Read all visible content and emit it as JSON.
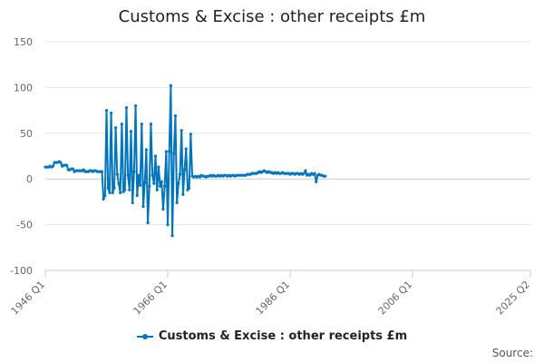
{
  "chart_data": {
    "type": "line",
    "title": "Customs & Excise : other receipts £m",
    "xlabel": "",
    "ylabel": "",
    "ylim": [
      -100,
      150
    ],
    "y_ticks": [
      150,
      100,
      50,
      0,
      -50,
      -100
    ],
    "x_range": [
      1946.0,
      2025.25
    ],
    "x_ticks": [
      {
        "label": "1946 Q1",
        "value": 1946.0
      },
      {
        "label": "1966 Q1",
        "value": 1966.0
      },
      {
        "label": "1986 Q1",
        "value": 1986.0
      },
      {
        "label": "2006 Q1",
        "value": 2006.0
      },
      {
        "label": "2025 Q2",
        "value": 2025.25
      }
    ],
    "grid": true,
    "legend_position": "bottom",
    "series_color": "#0075bc",
    "series": [
      {
        "name": "Customs & Excise : other receipts £m",
        "points": [
          [
            1946.0,
            13
          ],
          [
            1946.25,
            13
          ],
          [
            1946.5,
            13
          ],
          [
            1946.75,
            14
          ],
          [
            1947.0,
            13
          ],
          [
            1947.25,
            14
          ],
          [
            1947.5,
            18
          ],
          [
            1947.75,
            18
          ],
          [
            1948.0,
            18
          ],
          [
            1948.25,
            19
          ],
          [
            1948.5,
            18
          ],
          [
            1948.75,
            14
          ],
          [
            1949.0,
            15
          ],
          [
            1949.25,
            15
          ],
          [
            1949.5,
            15
          ],
          [
            1949.75,
            10
          ],
          [
            1950.0,
            10
          ],
          [
            1950.25,
            11
          ],
          [
            1950.5,
            11
          ],
          [
            1950.75,
            8
          ],
          [
            1951.0,
            9
          ],
          [
            1951.25,
            9
          ],
          [
            1951.5,
            9
          ],
          [
            1951.75,
            9
          ],
          [
            1952.0,
            9
          ],
          [
            1952.25,
            10
          ],
          [
            1952.5,
            8
          ],
          [
            1952.75,
            8
          ],
          [
            1953.0,
            8
          ],
          [
            1953.25,
            9
          ],
          [
            1953.5,
            9
          ],
          [
            1953.75,
            8
          ],
          [
            1954.0,
            9
          ],
          [
            1954.25,
            9
          ],
          [
            1954.5,
            8
          ],
          [
            1954.75,
            8
          ],
          [
            1955.0,
            8
          ],
          [
            1955.25,
            8
          ],
          [
            1955.5,
            -22
          ],
          [
            1955.75,
            -18
          ],
          [
            1956.0,
            75
          ],
          [
            1956.25,
            -10
          ],
          [
            1956.5,
            -15
          ],
          [
            1956.75,
            72
          ],
          [
            1957.0,
            -15
          ],
          [
            1957.25,
            -10
          ],
          [
            1957.5,
            56
          ],
          [
            1957.75,
            5
          ],
          [
            1958.0,
            -5
          ],
          [
            1958.25,
            -15
          ],
          [
            1958.5,
            60
          ],
          [
            1958.75,
            -14
          ],
          [
            1959.0,
            -12
          ],
          [
            1959.25,
            78
          ],
          [
            1959.5,
            4
          ],
          [
            1959.75,
            -12
          ],
          [
            1960.0,
            52
          ],
          [
            1960.25,
            -26
          ],
          [
            1960.5,
            8
          ],
          [
            1960.75,
            80
          ],
          [
            1961.0,
            -18
          ],
          [
            1961.25,
            4
          ],
          [
            1961.5,
            -7
          ],
          [
            1961.75,
            60
          ],
          [
            1962.0,
            -30
          ],
          [
            1962.25,
            -4
          ],
          [
            1962.5,
            32
          ],
          [
            1962.75,
            -48
          ],
          [
            1963.0,
            -8
          ],
          [
            1963.25,
            60
          ],
          [
            1963.5,
            4
          ],
          [
            1963.75,
            -5
          ],
          [
            1964.0,
            25
          ],
          [
            1964.25,
            -12
          ],
          [
            1964.5,
            13
          ],
          [
            1964.75,
            -8
          ],
          [
            1965.0,
            -3
          ],
          [
            1965.25,
            -33
          ],
          [
            1965.5,
            -8
          ],
          [
            1965.75,
            30
          ],
          [
            1966.0,
            -50
          ],
          [
            1966.25,
            30
          ],
          [
            1966.5,
            102
          ],
          [
            1966.75,
            -62
          ],
          [
            1967.0,
            28
          ],
          [
            1967.25,
            69
          ],
          [
            1967.5,
            -26
          ],
          [
            1967.75,
            -5
          ],
          [
            1968.0,
            5
          ],
          [
            1968.25,
            53
          ],
          [
            1968.5,
            -17
          ],
          [
            1968.75,
            10
          ],
          [
            1969.0,
            33
          ],
          [
            1969.25,
            -12
          ],
          [
            1969.5,
            -10
          ],
          [
            1969.75,
            49
          ],
          [
            1970.0,
            3
          ],
          [
            1970.25,
            2
          ],
          [
            1970.5,
            3
          ],
          [
            1970.75,
            2
          ],
          [
            1971.0,
            3
          ],
          [
            1971.25,
            2
          ],
          [
            1971.5,
            4
          ],
          [
            1971.75,
            3
          ],
          [
            1972.0,
            3
          ],
          [
            1972.25,
            2
          ],
          [
            1972.5,
            3
          ],
          [
            1972.75,
            3
          ],
          [
            1973.0,
            4
          ],
          [
            1973.25,
            3
          ],
          [
            1973.5,
            4
          ],
          [
            1973.75,
            3
          ],
          [
            1974.0,
            3
          ],
          [
            1974.25,
            4
          ],
          [
            1974.5,
            3
          ],
          [
            1974.75,
            4
          ],
          [
            1975.0,
            3
          ],
          [
            1975.25,
            4
          ],
          [
            1975.5,
            4
          ],
          [
            1975.75,
            3
          ],
          [
            1976.0,
            4
          ],
          [
            1976.25,
            3
          ],
          [
            1976.5,
            4
          ],
          [
            1976.75,
            4
          ],
          [
            1977.0,
            3
          ],
          [
            1977.25,
            4
          ],
          [
            1977.5,
            4
          ],
          [
            1977.75,
            4
          ],
          [
            1978.0,
            4
          ],
          [
            1978.25,
            4
          ],
          [
            1978.5,
            4
          ],
          [
            1978.75,
            4
          ],
          [
            1979.0,
            5
          ],
          [
            1979.25,
            5
          ],
          [
            1979.5,
            5
          ],
          [
            1979.75,
            6
          ],
          [
            1980.0,
            6
          ],
          [
            1980.25,
            6
          ],
          [
            1980.5,
            6
          ],
          [
            1980.75,
            7
          ],
          [
            1981.0,
            8
          ],
          [
            1981.25,
            7
          ],
          [
            1981.5,
            8
          ],
          [
            1981.75,
            9
          ],
          [
            1982.0,
            8
          ],
          [
            1982.25,
            7
          ],
          [
            1982.5,
            8
          ],
          [
            1982.75,
            7
          ],
          [
            1983.0,
            7
          ],
          [
            1983.25,
            6
          ],
          [
            1983.5,
            7
          ],
          [
            1983.75,
            6
          ],
          [
            1984.0,
            7
          ],
          [
            1984.25,
            6
          ],
          [
            1984.5,
            6
          ],
          [
            1984.75,
            7
          ],
          [
            1985.0,
            6
          ],
          [
            1985.25,
            6
          ],
          [
            1985.5,
            6
          ],
          [
            1985.75,
            6
          ],
          [
            1986.0,
            5
          ],
          [
            1986.25,
            6
          ],
          [
            1986.5,
            6
          ],
          [
            1986.75,
            5
          ],
          [
            1987.0,
            6
          ],
          [
            1987.25,
            6
          ],
          [
            1987.5,
            5
          ],
          [
            1987.75,
            6
          ],
          [
            1988.0,
            5
          ],
          [
            1988.25,
            6
          ],
          [
            1988.5,
            9
          ],
          [
            1988.75,
            4
          ],
          [
            1989.0,
            5
          ],
          [
            1989.25,
            4
          ],
          [
            1989.5,
            6
          ],
          [
            1989.75,
            5
          ],
          [
            1990.0,
            6
          ],
          [
            1990.25,
            -3
          ],
          [
            1990.5,
            4
          ],
          [
            1990.75,
            5
          ],
          [
            1991.0,
            4
          ],
          [
            1991.25,
            4
          ],
          [
            1991.5,
            3
          ],
          [
            1991.75,
            3
          ]
        ]
      }
    ]
  },
  "source_label": "Source:"
}
